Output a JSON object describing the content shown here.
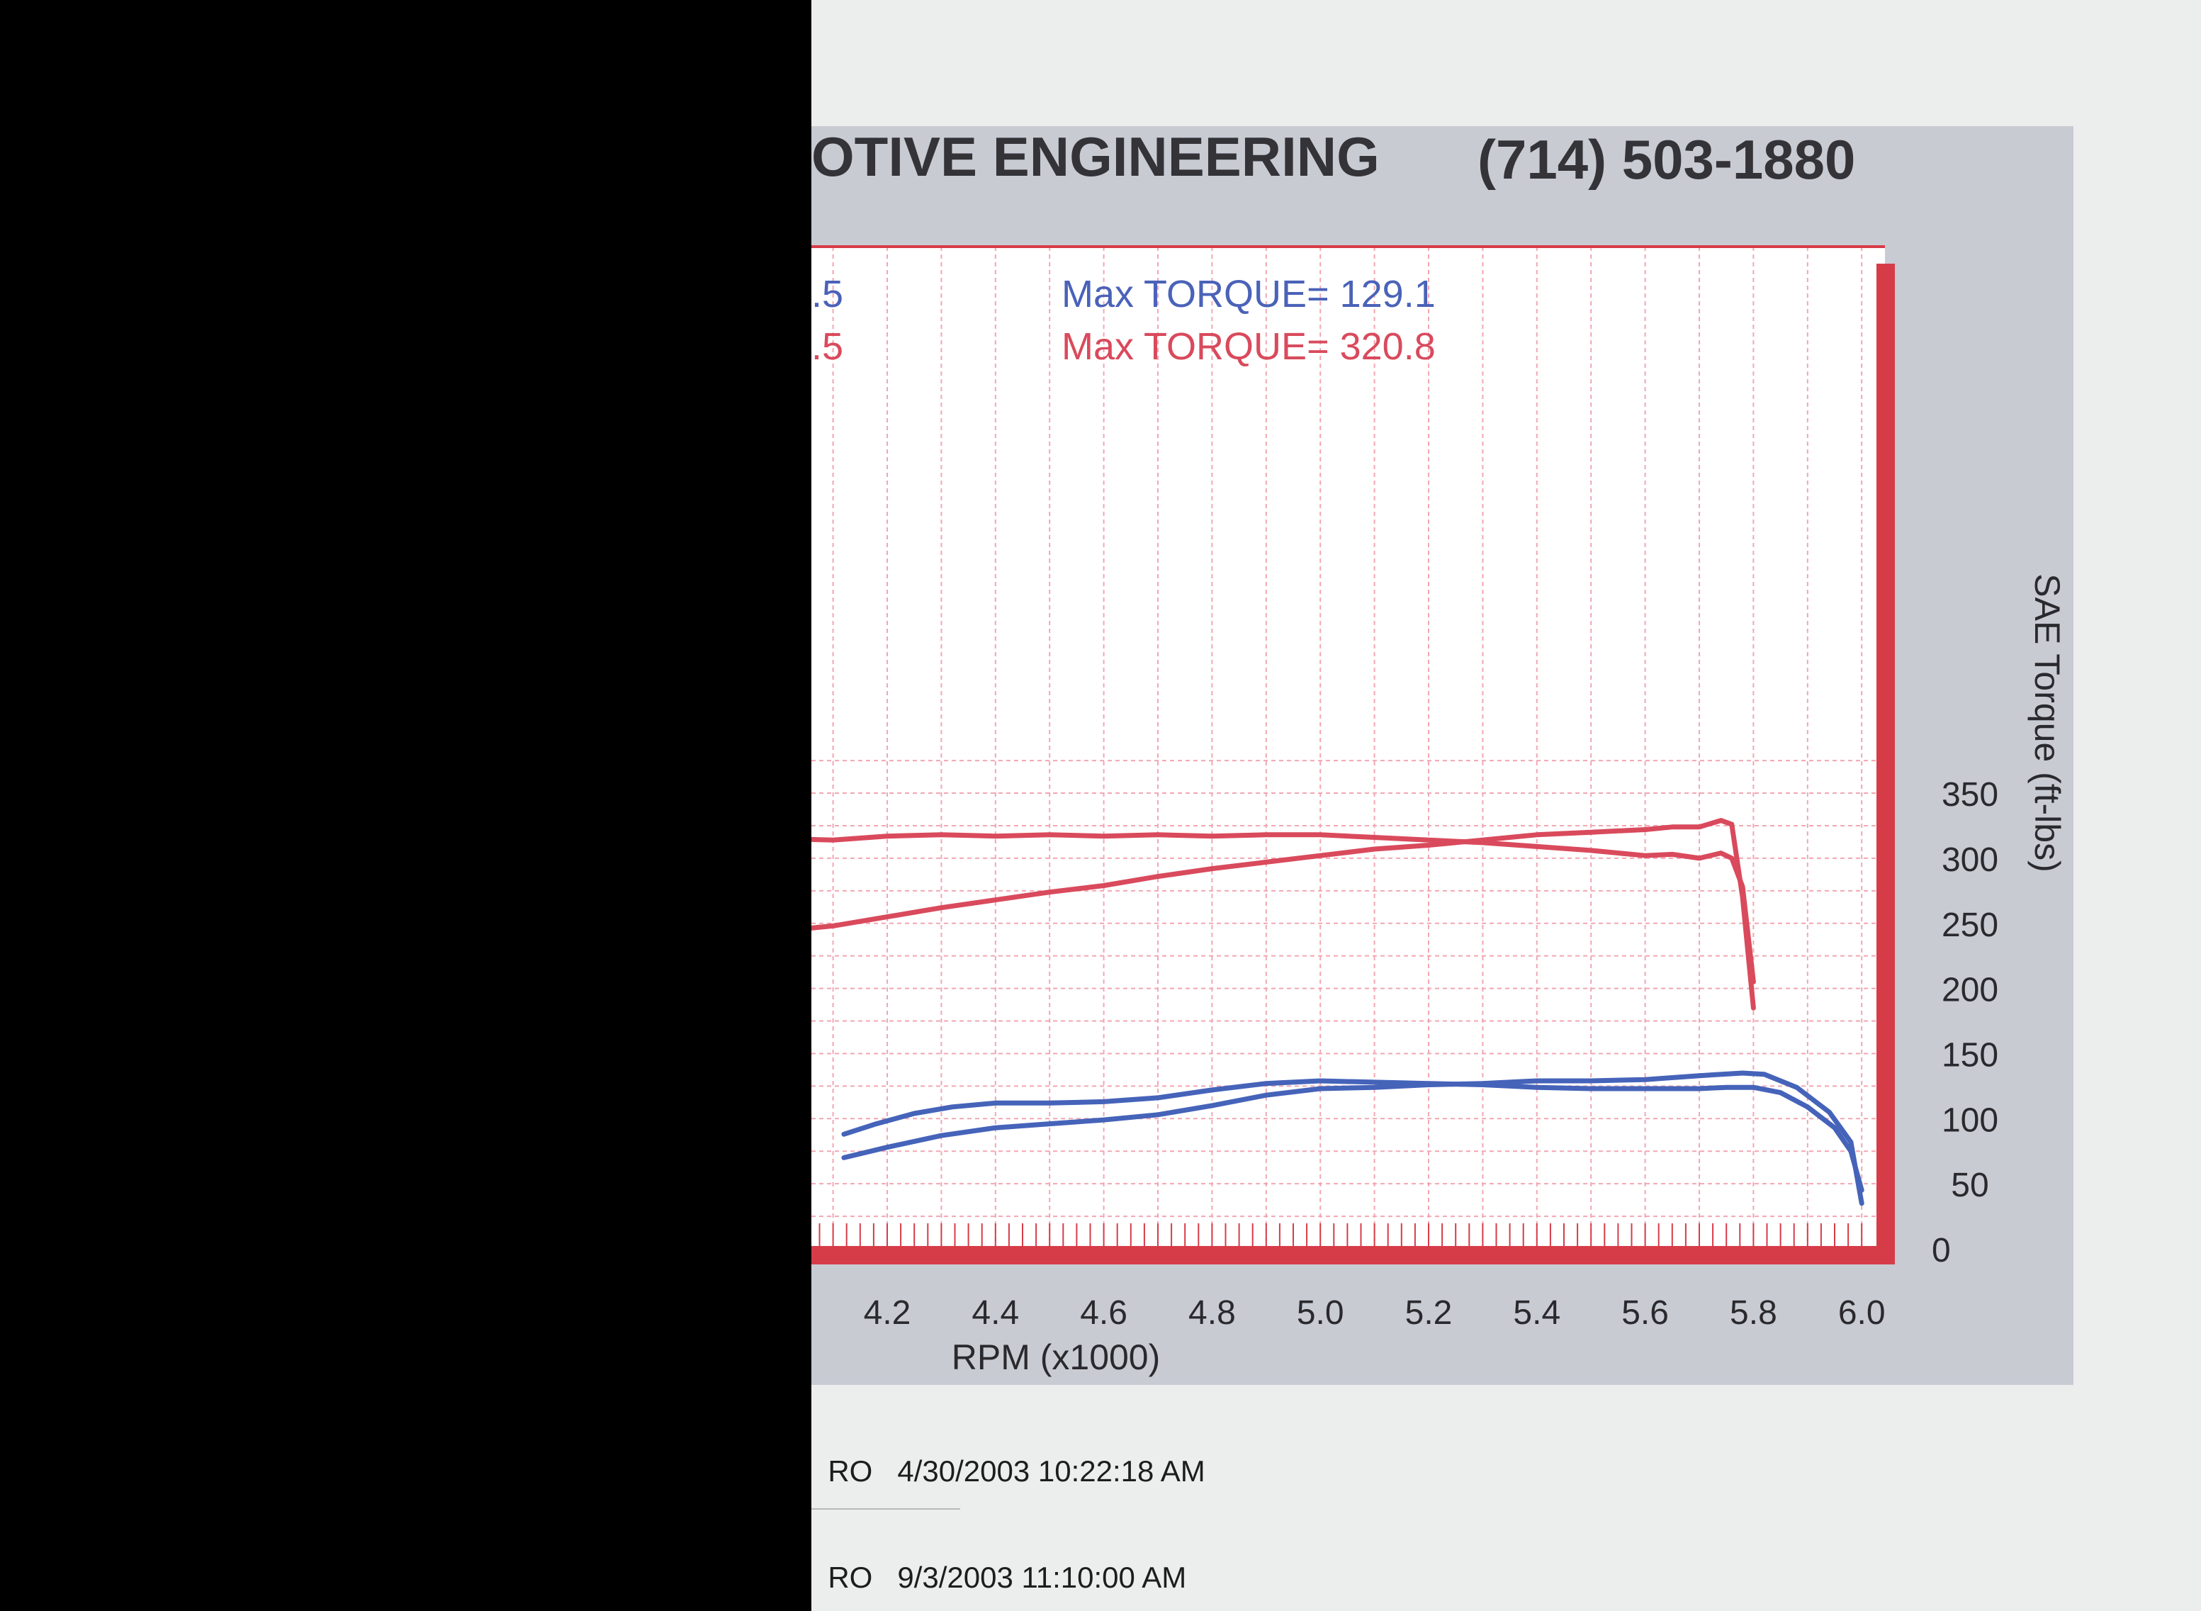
{
  "header": {
    "title": "OTIVE ENGINEERING",
    "phone": "(714) 503-1880"
  },
  "legend": [
    {
      "left_fragment": ".5",
      "text": "Max TORQUE= 129.1",
      "color": "#4a62b8"
    },
    {
      "left_fragment": ".5",
      "text": "Max TORQUE= 320.8",
      "color": "#d94a5c"
    }
  ],
  "runs": [
    {
      "fragment": "RO",
      "timestamp": "4/30/2003 10:22:18 AM"
    },
    {
      "fragment": "RO",
      "timestamp": "9/3/2003 11:10:00 AM"
    }
  ],
  "colors": {
    "blue_series": "#4563b9",
    "red_series": "#d94a5c",
    "plot_border": "#d63c48",
    "grid": "#f2a7b2",
    "panel": "#c9cbd3"
  },
  "chart_data": {
    "type": "line",
    "xlabel": "RPM (x1000)",
    "ylabel_right": "SAE Torque (ft-lbs)",
    "x_ticks": [
      "4.2",
      "4.4",
      "4.6",
      "4.8",
      "5.0",
      "5.2",
      "5.4",
      "5.6",
      "5.8",
      "6.0"
    ],
    "y_ticks": [
      "0",
      "50",
      "100",
      "150",
      "200",
      "250",
      "300",
      "350"
    ],
    "xlim": [
      4.0,
      6.02
    ],
    "ylim": [
      0,
      380
    ],
    "grid": true,
    "series": [
      {
        "color": "blue",
        "points": [
          [
            4.12,
            88
          ],
          [
            4.18,
            96
          ],
          [
            4.25,
            104
          ],
          [
            4.32,
            109
          ],
          [
            4.4,
            112
          ],
          [
            4.5,
            112
          ],
          [
            4.6,
            113
          ],
          [
            4.7,
            116
          ],
          [
            4.8,
            122
          ],
          [
            4.9,
            127
          ],
          [
            5.0,
            129
          ],
          [
            5.1,
            128
          ],
          [
            5.2,
            127
          ],
          [
            5.3,
            126
          ],
          [
            5.4,
            124
          ],
          [
            5.5,
            123
          ],
          [
            5.6,
            123
          ],
          [
            5.7,
            123
          ],
          [
            5.75,
            124
          ],
          [
            5.8,
            124
          ],
          [
            5.85,
            120
          ],
          [
            5.9,
            109
          ],
          [
            5.95,
            93
          ],
          [
            5.98,
            75
          ],
          [
            6.0,
            45
          ]
        ]
      },
      {
        "color": "blue",
        "points": [
          [
            4.12,
            70
          ],
          [
            4.2,
            78
          ],
          [
            4.3,
            87
          ],
          [
            4.4,
            93
          ],
          [
            4.5,
            96
          ],
          [
            4.6,
            99
          ],
          [
            4.7,
            103
          ],
          [
            4.8,
            110
          ],
          [
            4.9,
            118
          ],
          [
            5.0,
            123
          ],
          [
            5.1,
            124
          ],
          [
            5.2,
            126
          ],
          [
            5.3,
            127
          ],
          [
            5.4,
            129
          ],
          [
            5.5,
            129
          ],
          [
            5.6,
            130
          ],
          [
            5.7,
            133
          ],
          [
            5.78,
            135
          ],
          [
            5.82,
            134
          ],
          [
            5.88,
            124
          ],
          [
            5.94,
            105
          ],
          [
            5.98,
            82
          ],
          [
            6.0,
            35
          ]
        ]
      },
      {
        "color": "red",
        "points": [
          [
            4.0,
            315
          ],
          [
            4.1,
            314
          ],
          [
            4.2,
            317
          ],
          [
            4.3,
            318
          ],
          [
            4.4,
            317
          ],
          [
            4.5,
            318
          ],
          [
            4.6,
            317
          ],
          [
            4.7,
            318
          ],
          [
            4.8,
            317
          ],
          [
            4.9,
            318
          ],
          [
            5.0,
            318
          ],
          [
            5.1,
            316
          ],
          [
            5.2,
            314
          ],
          [
            5.3,
            312
          ],
          [
            5.4,
            309
          ],
          [
            5.5,
            306
          ],
          [
            5.6,
            302
          ],
          [
            5.65,
            303
          ],
          [
            5.7,
            300
          ],
          [
            5.74,
            304
          ],
          [
            5.76,
            300
          ],
          [
            5.78,
            278
          ],
          [
            5.8,
            205
          ]
        ]
      },
      {
        "color": "red",
        "points": [
          [
            4.0,
            244
          ],
          [
            4.1,
            248
          ],
          [
            4.2,
            255
          ],
          [
            4.3,
            262
          ],
          [
            4.4,
            268
          ],
          [
            4.5,
            274
          ],
          [
            4.6,
            279
          ],
          [
            4.7,
            286
          ],
          [
            4.8,
            292
          ],
          [
            4.9,
            297
          ],
          [
            5.0,
            302
          ],
          [
            5.1,
            307
          ],
          [
            5.2,
            310
          ],
          [
            5.3,
            314
          ],
          [
            5.4,
            318
          ],
          [
            5.5,
            320
          ],
          [
            5.6,
            322
          ],
          [
            5.65,
            324
          ],
          [
            5.7,
            324
          ],
          [
            5.74,
            329
          ],
          [
            5.76,
            326
          ],
          [
            5.78,
            270
          ],
          [
            5.8,
            185
          ]
        ]
      }
    ]
  }
}
